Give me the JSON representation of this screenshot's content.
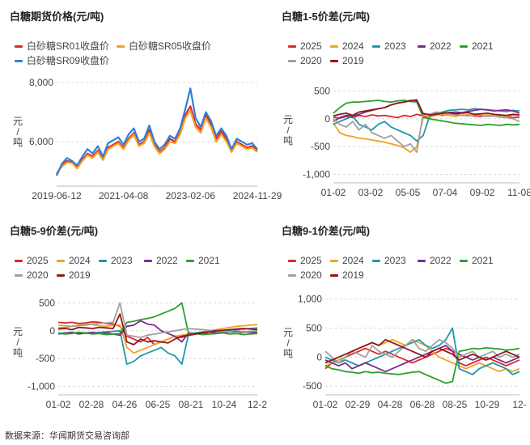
{
  "footer": {
    "source": "数据来源：华闻期货交易咨询部"
  },
  "chart_data": [
    {
      "id": "price",
      "type": "line",
      "title": "白糖期货价格(元/吨)",
      "ylabel": "元/吨",
      "ylim": [
        4500,
        8000
      ],
      "yticks": [
        6000,
        8000
      ],
      "ytick_labels": [
        "6,000",
        "8,000"
      ],
      "xticks": [
        "2019-06-12",
        "2021-04-08",
        "2023-02-06",
        "2024-11-29"
      ],
      "series": [
        {
          "name": "白砂糖SR01收盘价",
          "color": "#e0262a",
          "values": [
            4900,
            5200,
            5350,
            5300,
            5150,
            5400,
            5600,
            5500,
            5700,
            5400,
            5800,
            5900,
            6000,
            5800,
            6100,
            6300,
            5900,
            6000,
            6400,
            5900,
            5650,
            5800,
            6100,
            6000,
            6300,
            6900,
            7200,
            6600,
            6400,
            6900,
            6600,
            6100,
            6350,
            6100,
            5700,
            6000,
            5900,
            5800,
            5850,
            5700
          ]
        },
        {
          "name": "白砂糖SR05收盘价",
          "color": "#f5a023",
          "values": [
            4950,
            5150,
            5300,
            5280,
            5100,
            5350,
            5550,
            5450,
            5650,
            5380,
            5750,
            5850,
            5950,
            5750,
            6050,
            6250,
            5850,
            5950,
            6300,
            5850,
            5600,
            5750,
            6000,
            5950,
            6250,
            6800,
            7050,
            6500,
            6300,
            6800,
            6500,
            6000,
            6250,
            6000,
            5650,
            5950,
            5850,
            5750,
            5800,
            5650
          ]
        },
        {
          "name": "白砂糖SR09收盘价",
          "color": "#2e7fd9",
          "values": [
            4850,
            5250,
            5450,
            5350,
            5200,
            5500,
            5750,
            5600,
            5850,
            5500,
            5950,
            6050,
            6150,
            5900,
            6250,
            6450,
            6000,
            6100,
            6550,
            6000,
            5750,
            5900,
            6200,
            6100,
            6450,
            7100,
            7800,
            6800,
            6500,
            7000,
            6700,
            6200,
            6450,
            6200,
            5750,
            6100,
            6000,
            5900,
            5950,
            5750
          ]
        }
      ]
    },
    {
      "id": "spread15",
      "type": "line",
      "title": "白糖1-5价差(元/吨)",
      "ylabel": "元/吨",
      "ylim": [
        -1150,
        650
      ],
      "yticks": [
        -1000,
        -500,
        0,
        500
      ],
      "ytick_labels": [
        "-1,000",
        "-500",
        "0",
        "500"
      ],
      "xticks": [
        "01-02",
        "03-02",
        "05-05",
        "07-04",
        "09-02",
        "11-08"
      ],
      "series": [
        {
          "name": "2025",
          "color": "#e0262a",
          "values": [
            30,
            10,
            40,
            20,
            60,
            40,
            70,
            50,
            60,
            40,
            20,
            60,
            40,
            80,
            50,
            30,
            80,
            60,
            90,
            80,
            60,
            70,
            50,
            40,
            60,
            50,
            30,
            40,
            20,
            30
          ]
        },
        {
          "name": "2024",
          "color": "#f5a023",
          "values": [
            -80,
            -250,
            -300,
            -320,
            -350,
            -360,
            -380,
            -400,
            -420,
            -450,
            -480,
            -520,
            -600,
            -500,
            20,
            30,
            60,
            80,
            60,
            40,
            70,
            60,
            80,
            60,
            70,
            50,
            60,
            40,
            70,
            60
          ]
        },
        {
          "name": "2023",
          "color": "#1b9aaa",
          "values": [
            -100,
            -50,
            0,
            50,
            -100,
            -150,
            -200,
            -100,
            -50,
            -150,
            -200,
            -250,
            -300,
            -400,
            -300,
            50,
            100,
            120,
            150,
            160,
            170,
            160,
            180,
            170,
            160,
            150,
            140,
            130,
            150,
            140
          ]
        },
        {
          "name": "2022",
          "color": "#7b2c8f",
          "values": [
            -50,
            20,
            60,
            50,
            80,
            120,
            150,
            180,
            200,
            250,
            280,
            300,
            330,
            320,
            90,
            80,
            90,
            100,
            110,
            120,
            110,
            130,
            150,
            170,
            160,
            140,
            150,
            160,
            140,
            100
          ]
        },
        {
          "name": "2021",
          "color": "#2ca02c",
          "values": [
            100,
            200,
            280,
            300,
            300,
            310,
            320,
            330,
            310,
            300,
            320,
            330,
            310,
            300,
            20,
            0,
            -20,
            -40,
            -60,
            -80,
            -90,
            -100,
            -110,
            -120,
            -100,
            -110,
            -120,
            -100,
            -110,
            -100
          ]
        },
        {
          "name": "2020",
          "color": "#a0a0a0",
          "values": [
            0,
            -100,
            -150,
            -50,
            -200,
            -100,
            -250,
            -300,
            -350,
            -300,
            -400,
            -500,
            -450,
            -600,
            100,
            80,
            120,
            100,
            90,
            70,
            60,
            50,
            70,
            60,
            40,
            50,
            30,
            20,
            0,
            -50
          ]
        },
        {
          "name": "2019",
          "color": "#8b1a1a",
          "values": [
            50,
            80,
            100,
            60,
            120,
            140,
            160,
            180,
            200,
            250,
            280,
            300,
            320,
            340,
            90,
            70,
            80,
            100,
            110,
            90,
            100,
            110,
            80,
            90,
            100,
            80,
            70,
            60,
            80,
            70
          ]
        }
      ]
    },
    {
      "id": "spread59",
      "type": "line",
      "title": "白糖5-9价差(元/吨)",
      "ylabel": "元/吨",
      "ylim": [
        -1150,
        650
      ],
      "yticks": [
        -1000,
        -500,
        0,
        500
      ],
      "ytick_labels": [
        "-1,000",
        "-500",
        "0",
        "500"
      ],
      "xticks": [
        "01-02",
        "02-28",
        "04-26",
        "06-25",
        "08-21",
        "10-24",
        "12-2"
      ],
      "series": [
        {
          "name": "2025",
          "color": "#e0262a",
          "values": [
            150,
            140,
            150,
            130,
            140,
            160,
            150,
            130,
            120,
            80,
            -100,
            -150,
            -200,
            -120,
            -250,
            -200,
            -150,
            -100,
            -120,
            -80,
            -60,
            -40,
            -60,
            -50,
            -30,
            -20,
            -40,
            -30,
            -20,
            -10
          ]
        },
        {
          "name": "2024",
          "color": "#f5a023",
          "values": [
            100,
            90,
            80,
            100,
            120,
            110,
            90,
            80,
            100,
            100,
            -300,
            -400,
            -350,
            -300,
            -250,
            -200,
            -150,
            -100,
            -80,
            -60,
            -40,
            -20,
            0,
            20,
            40,
            60,
            80,
            90,
            100,
            110
          ]
        },
        {
          "name": "2023",
          "color": "#1b9aaa",
          "values": [
            -60,
            -50,
            -40,
            -30,
            -50,
            -40,
            -30,
            -20,
            -10,
            0,
            -600,
            -550,
            -450,
            -400,
            -350,
            -300,
            -400,
            -450,
            -600,
            -50,
            -40,
            -30,
            -20,
            -10,
            0,
            10,
            20,
            30,
            40,
            50
          ]
        },
        {
          "name": "2022",
          "color": "#7b2c8f",
          "values": [
            -50,
            -40,
            -30,
            -60,
            -40,
            -30,
            -50,
            -40,
            -60,
            -80,
            80,
            100,
            180,
            120,
            100,
            0,
            -50,
            -100,
            -200,
            -40,
            -50,
            -30,
            -20,
            -40,
            -30,
            -20,
            -10,
            -20,
            -30,
            -40
          ]
        },
        {
          "name": "2021",
          "color": "#2ca02c",
          "values": [
            -40,
            -60,
            -50,
            -30,
            -40,
            -60,
            -50,
            -70,
            -60,
            -50,
            150,
            170,
            200,
            220,
            250,
            300,
            350,
            400,
            500,
            -60,
            -50,
            -70,
            -60,
            -50,
            -40,
            -60,
            -50,
            -70,
            -60,
            -50
          ]
        },
        {
          "name": "2020",
          "color": "#a0a0a0",
          "values": [
            50,
            60,
            80,
            90,
            100,
            120,
            130,
            140,
            150,
            500,
            -80,
            -100,
            -120,
            -80,
            -60,
            -40,
            -20,
            0,
            20,
            40,
            30,
            20,
            10,
            0,
            -10,
            -20,
            -30,
            -20,
            -10,
            0
          ]
        },
        {
          "name": "2019",
          "color": "#8b1a1a",
          "values": [
            30,
            40,
            20,
            60,
            50,
            40,
            60,
            50,
            40,
            300,
            -200,
            -250,
            -150,
            -200,
            -180,
            -200,
            -220,
            -150,
            -100,
            -80,
            -60,
            -40,
            -20,
            0,
            10,
            20,
            30,
            40,
            30,
            20
          ]
        }
      ]
    },
    {
      "id": "spread91",
      "type": "line",
      "title": "白糖9-1价差(元/吨)",
      "ylabel": "元/吨",
      "ylim": [
        -650,
        1050
      ],
      "yticks": [
        -500,
        0,
        500,
        1000
      ],
      "ytick_labels": [
        "-500",
        "0",
        "500",
        "1,000"
      ],
      "xticks": [
        "01-02",
        "02-29",
        "04-28",
        "06-28",
        "08-25",
        "10-29",
        "12-"
      ],
      "series": [
        {
          "name": "2025",
          "color": "#e0262a",
          "values": [
            -200,
            -100,
            -50,
            0,
            50,
            100,
            150,
            100,
            50,
            100,
            50,
            0,
            -50,
            -100,
            -50,
            0,
            50,
            100,
            150,
            100,
            -100,
            -150,
            -100,
            -50,
            0,
            -50,
            -100,
            -150,
            -100,
            -50
          ]
        },
        {
          "name": "2024",
          "color": "#f5a023",
          "values": [
            -150,
            -100,
            -50,
            0,
            100,
            150,
            200,
            250,
            200,
            250,
            300,
            250,
            200,
            300,
            250,
            200,
            100,
            0,
            -50,
            -100,
            -150,
            -200,
            -150,
            -100,
            -150,
            -200,
            -250,
            -200,
            -250,
            -200
          ]
        },
        {
          "name": "2023",
          "color": "#1b9aaa",
          "values": [
            0,
            -50,
            -100,
            -50,
            -100,
            -150,
            -100,
            -50,
            0,
            50,
            100,
            150,
            200,
            250,
            300,
            200,
            150,
            200,
            300,
            500,
            -200,
            -250,
            -300,
            -200,
            -150,
            -100,
            -150,
            -200,
            -300,
            -250
          ]
        },
        {
          "name": "2022",
          "color": "#7b2c8f",
          "values": [
            -50,
            -100,
            -150,
            -100,
            -200,
            -150,
            -100,
            -150,
            -200,
            -250,
            -200,
            -150,
            -100,
            -50,
            0,
            50,
            100,
            150,
            200,
            100,
            50,
            0,
            -50,
            0,
            -50,
            0,
            -50,
            -100,
            -50,
            0
          ]
        },
        {
          "name": "2021",
          "color": "#2ca02c",
          "values": [
            -150,
            -200,
            -220,
            -250,
            -260,
            -280,
            -250,
            -270,
            -260,
            -280,
            -290,
            -300,
            -280,
            -260,
            -250,
            -300,
            -350,
            -400,
            -450,
            -420,
            100,
            120,
            150,
            140,
            160,
            150,
            140,
            120,
            130,
            150
          ]
        },
        {
          "name": "2020",
          "color": "#a0a0a0",
          "values": [
            100,
            0,
            -100,
            0,
            100,
            50,
            0,
            200,
            100,
            50,
            0,
            100,
            200,
            300,
            150,
            100,
            200,
            300,
            250,
            150,
            0,
            50,
            100,
            0,
            50,
            100,
            0,
            50,
            0,
            50
          ]
        },
        {
          "name": "2019",
          "color": "#8b1a1a",
          "values": [
            -100,
            -50,
            0,
            50,
            100,
            150,
            200,
            250,
            200,
            300,
            250,
            200,
            150,
            100,
            50,
            0,
            100,
            150,
            100,
            50,
            -50,
            0,
            50,
            0,
            -50,
            0,
            50,
            100,
            50,
            0
          ]
        }
      ]
    }
  ]
}
